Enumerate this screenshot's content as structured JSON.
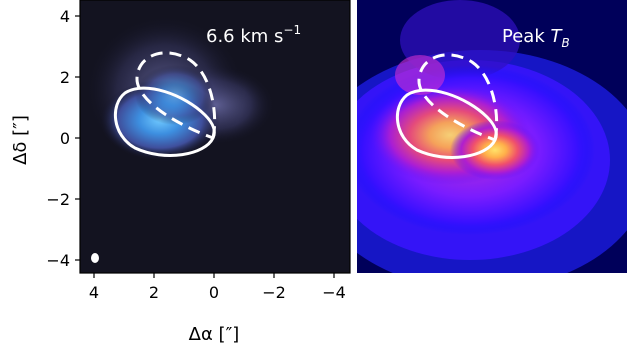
{
  "figure": {
    "ylabel": "Δδ [″]",
    "xlabel": "Δα [″]",
    "x_ticks": [
      "4",
      "2",
      "0",
      "−2",
      "−4"
    ],
    "y_ticks": [
      "4",
      "2",
      "0",
      "−2",
      "−4"
    ],
    "panels": [
      {
        "label": "6.6 km s",
        "label_sup": "−1",
        "colormap": "blue-white (velocity channel)"
      },
      {
        "label": "Peak ",
        "label_italic": "T",
        "label_sub": "B",
        "colormap": "plasma-like (peak brightness temperature)"
      }
    ]
  }
}
